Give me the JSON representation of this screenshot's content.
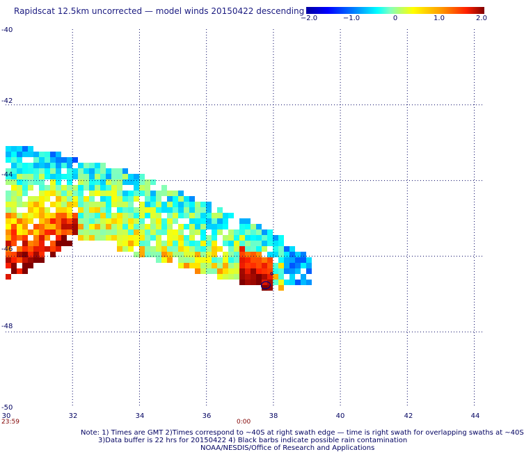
{
  "title": "Rapidscat 12.5km uncorrected — model winds 20150422 descending",
  "colorbar": {
    "ticks": [
      "−2.0",
      "−1.0",
      "0",
      "1.0",
      "2.0"
    ],
    "tick_values": [
      -2.0,
      -1.0,
      0,
      1.0,
      2.0
    ]
  },
  "axes": {
    "lat_labels": [
      "-40",
      "-42",
      "-44",
      "-46",
      "-48",
      "-50"
    ],
    "lat_values": [
      -40,
      -42,
      -44,
      -46,
      -48,
      -50
    ],
    "lon_labels": [
      "30",
      "32",
      "34",
      "36",
      "38",
      "40",
      "42",
      "44"
    ],
    "lon_values": [
      30,
      32,
      34,
      36,
      38,
      40,
      42,
      44
    ],
    "lon_range": [
      30,
      44.3
    ],
    "lat_range": [
      -40,
      -50
    ]
  },
  "times": {
    "left": "23:59",
    "middle": "0:00"
  },
  "notes": {
    "line1": "Note: 1) Times are GMT 2)Times correspond to ~40S at right swath edge — time is right swath for overlapping swaths at ~40S",
    "line2": "3)Data buffer is 22 hrs for 20150422 4) Black barbs indicate possible rain contamination",
    "line3": "NOAA/NESDIS/Office of Research and Applications"
  },
  "colors": {
    "land_outline": "#000080",
    "grid": "#000060"
  }
}
